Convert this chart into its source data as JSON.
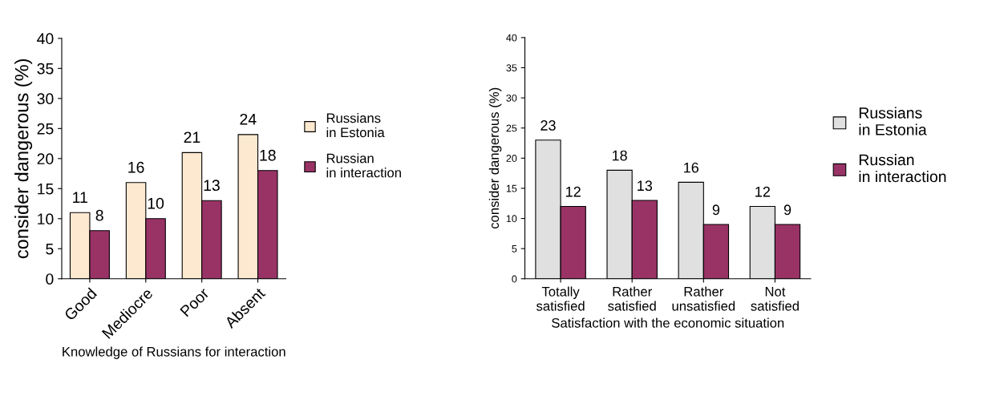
{
  "chart_data": [
    {
      "type": "bar",
      "categories": [
        "Good",
        "Mediocre",
        "Poor",
        "Absent"
      ],
      "xlabel": "Knowledge of Russians for interaction",
      "ylabel": "consider dangerous (%)",
      "ylim": [
        0,
        40
      ],
      "yticks": [
        0,
        5,
        10,
        15,
        20,
        25,
        30,
        35,
        40
      ],
      "legend": "right",
      "data_labels": true,
      "grid": false,
      "series": [
        {
          "name": "Russians in Estonia",
          "color": "#fde9d0",
          "values": [
            11,
            16,
            21,
            24
          ]
        },
        {
          "name": "Russian in interaction",
          "color": "#993366",
          "values": [
            8,
            10,
            13,
            18
          ]
        }
      ]
    },
    {
      "type": "bar",
      "categories": [
        "Totally satisfied",
        "Rather satisfied",
        "Rather unsatisfied",
        "Not satisfied"
      ],
      "xlabel": "Satisfaction with the economic situation",
      "ylabel": "consider dangerous (%)",
      "ylim": [
        0,
        40
      ],
      "yticks": [
        0,
        5,
        10,
        15,
        20,
        25,
        30,
        35,
        40
      ],
      "legend": "right",
      "data_labels": true,
      "grid": false,
      "series": [
        {
          "name": "Russians in Estonia",
          "color": "#e0e0e0",
          "values": [
            23,
            18,
            16,
            12
          ]
        },
        {
          "name": "Russian in interaction",
          "color": "#993366",
          "values": [
            12,
            13,
            9,
            9
          ]
        }
      ]
    }
  ]
}
